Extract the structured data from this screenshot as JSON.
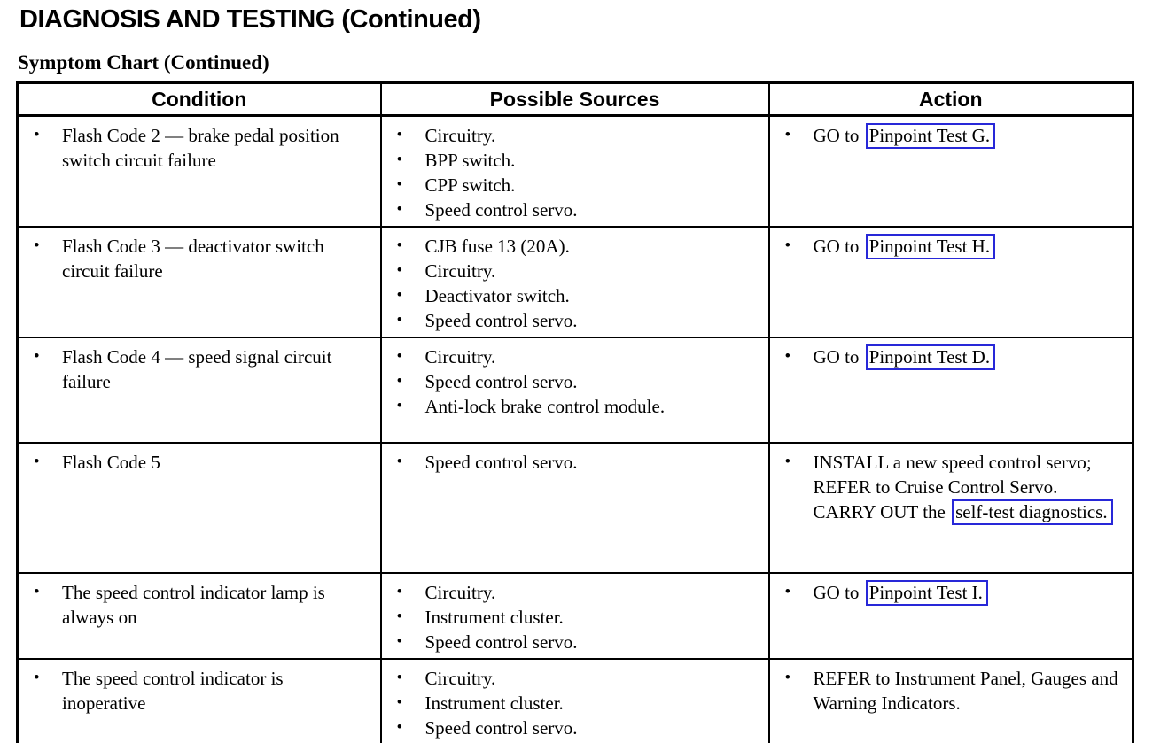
{
  "page": {
    "title": "DIAGNOSIS AND TESTING (Continued)",
    "subtitle": "Symptom Chart (Continued)"
  },
  "link_color": "#2828d8",
  "table": {
    "headers": [
      "Condition",
      "Possible Sources",
      "Action"
    ],
    "rows": [
      {
        "condition": "Flash Code 2 — brake pedal position switch circuit failure",
        "sources": [
          "Circuitry.",
          "BPP switch.",
          "CPP switch.",
          "Speed control servo."
        ],
        "action": [
          {
            "text": "GO to ",
            "boxed": false
          },
          {
            "text": "Pinpoint Test G.",
            "boxed": true
          }
        ]
      },
      {
        "condition": "Flash Code 3 — deactivator switch circuit failure",
        "sources": [
          "CJB fuse 13 (20A).",
          "Circuitry.",
          "Deactivator switch.",
          "Speed control servo."
        ],
        "action": [
          {
            "text": "GO to ",
            "boxed": false
          },
          {
            "text": "Pinpoint Test H.",
            "boxed": true
          }
        ]
      },
      {
        "condition": "Flash Code 4 — speed signal circuit failure",
        "sources": [
          "Circuitry.",
          "Speed control servo.",
          "Anti-lock brake control module."
        ],
        "action": [
          {
            "text": "GO to ",
            "boxed": false
          },
          {
            "text": "Pinpoint Test D.",
            "boxed": true
          }
        ]
      },
      {
        "condition": "Flash Code 5",
        "sources": [
          "Speed control servo."
        ],
        "action": [
          {
            "text": "INSTALL a new speed control servo; REFER to Cruise Control Servo. CARRY OUT the ",
            "boxed": false
          },
          {
            "text": "self-test diagnostics.",
            "boxed": true
          }
        ]
      },
      {
        "condition": "The speed control indicator lamp is always on",
        "sources": [
          "Circuitry.",
          "Instrument cluster.",
          "Speed control servo."
        ],
        "action": [
          {
            "text": "GO to ",
            "boxed": false
          },
          {
            "text": "Pinpoint Test I.",
            "boxed": true
          }
        ]
      },
      {
        "condition": "The speed control indicator is inoperative",
        "sources": [
          "Circuitry.",
          "Instrument cluster.",
          "Speed control servo."
        ],
        "action": [
          {
            "text": "REFER to Instrument Panel, Gauges and Warning Indicators.",
            "boxed": false
          }
        ]
      }
    ]
  }
}
